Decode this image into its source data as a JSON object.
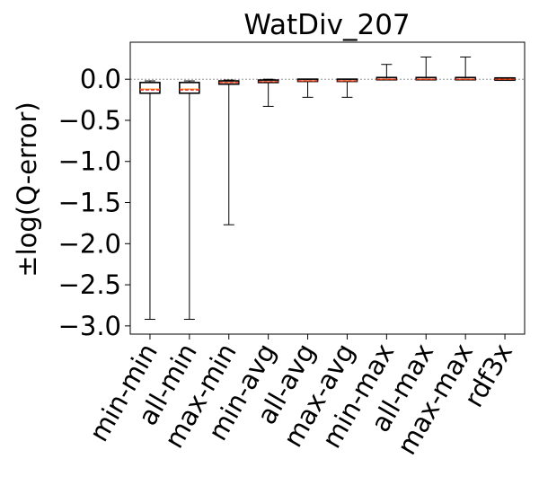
{
  "chart_data": {
    "type": "box",
    "title": "WatDiv_207",
    "xlabel": "",
    "ylabel": "±log(Q-error)",
    "ylim": [
      -3.1,
      0.45
    ],
    "yticks": [
      0.0,
      -0.5,
      -1.0,
      -1.5,
      -2.0,
      -2.5,
      -3.0
    ],
    "ytick_labels": [
      "0.0",
      "−0.5",
      "−1.0",
      "−1.5",
      "−2.0",
      "−2.5",
      "−3.0"
    ],
    "reference_line": 0.0,
    "grid": false,
    "categories": [
      "min-min",
      "all-min",
      "max-min",
      "min-avg",
      "all-avg",
      "max-avg",
      "min-max",
      "all-max",
      "max-max",
      "rdf3x"
    ],
    "series": [
      {
        "boxes": [
          {
            "whisker_low": -2.92,
            "q1": -0.17,
            "median": -0.12,
            "mean": -0.13,
            "q3": -0.04,
            "whisker_high": -0.02
          },
          {
            "whisker_low": -2.92,
            "q1": -0.17,
            "median": -0.12,
            "mean": -0.13,
            "q3": -0.04,
            "whisker_high": -0.02
          },
          {
            "whisker_low": -1.77,
            "q1": -0.06,
            "median": -0.04,
            "mean": -0.04,
            "q3": -0.02,
            "whisker_high": -0.01
          },
          {
            "whisker_low": -0.33,
            "q1": -0.04,
            "median": -0.03,
            "mean": -0.03,
            "q3": -0.01,
            "whisker_high": 0.0
          },
          {
            "whisker_low": -0.22,
            "q1": -0.03,
            "median": -0.02,
            "mean": -0.02,
            "q3": -0.01,
            "whisker_high": 0.0
          },
          {
            "whisker_low": -0.22,
            "q1": -0.03,
            "median": -0.02,
            "mean": -0.02,
            "q3": -0.01,
            "whisker_high": 0.0
          },
          {
            "whisker_low": 0.0,
            "q1": 0.0,
            "median": 0.0,
            "mean": 0.0,
            "q3": 0.01,
            "whisker_high": 0.18
          },
          {
            "whisker_low": 0.0,
            "q1": 0.0,
            "median": 0.0,
            "mean": 0.0,
            "q3": 0.01,
            "whisker_high": 0.27
          },
          {
            "whisker_low": 0.0,
            "q1": 0.0,
            "median": 0.0,
            "mean": 0.0,
            "q3": 0.01,
            "whisker_high": 0.27
          },
          {
            "whisker_low": -0.01,
            "q1": -0.005,
            "median": 0.0,
            "mean": 0.0,
            "q3": 0.005,
            "whisker_high": 0.01
          }
        ]
      }
    ],
    "colors": {
      "box": "#000000",
      "median": "#ff7f0e",
      "mean": "#e41a1c",
      "reference": "#888888"
    }
  }
}
